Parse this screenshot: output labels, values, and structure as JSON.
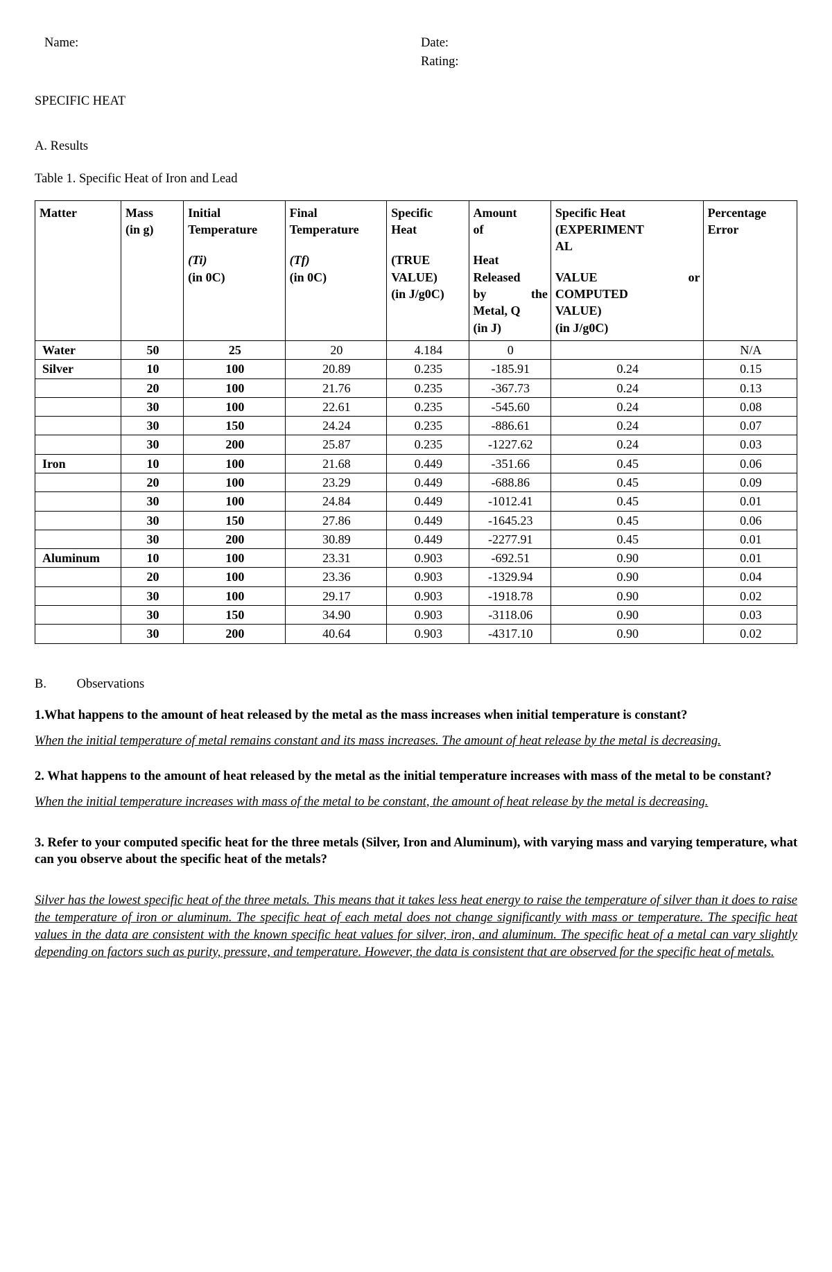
{
  "header": {
    "name_label": "Name:",
    "date_label": "Date:",
    "rating_label": "Rating:"
  },
  "title": "SPECIFIC HEAT",
  "sectionA_label": "A. Results",
  "table_caption": "Table 1. Specific Heat of Iron and Lead",
  "columns": {
    "matter": {
      "l1": "Matter"
    },
    "mass": {
      "l1": "Mass",
      "l2": "(in g)"
    },
    "ti": {
      "l1": "Initial",
      "l2": "Temperature",
      "s1": "(Ti)",
      "s2": "(in 0C)"
    },
    "tf": {
      "l1": "Final",
      "l2": "Temperature",
      "s1": "(Tf)",
      "s2": "(in 0C)"
    },
    "sh": {
      "l1": "Specific",
      "l2": "Heat",
      "s1": "(TRUE",
      "s2": "VALUE)",
      "s3": "(in J/g0C)"
    },
    "q": {
      "l1": "Amount",
      "l2": "of",
      "g1": "Heat",
      "g2": "Released",
      "g3a": "by",
      "g3b": "the",
      "g4": "Metal, Q",
      "g5": "(in J)"
    },
    "exp": {
      "l1": "Specific Heat",
      "l2": "(EXPERIMENT",
      "l3": "AL",
      "s1a": "VALUE",
      "s1b": "or",
      "s2": "COMPUTED",
      "s3": "VALUE)",
      "s4": "(in J/g0C)"
    },
    "err": {
      "l1": "Percentage",
      "l2": "Error"
    }
  },
  "rows": [
    {
      "matter": "Water",
      "mass": "50",
      "ti": "25",
      "tf": "20",
      "sh": "4.184",
      "q": "0",
      "exp": "",
      "err": "N/A"
    },
    {
      "matter": "Silver",
      "mass": "10",
      "ti": "100",
      "tf": "20.89",
      "sh": "0.235",
      "q": "-185.91",
      "exp": "0.24",
      "err": "0.15"
    },
    {
      "matter": "",
      "mass": "20",
      "ti": "100",
      "tf": "21.76",
      "sh": "0.235",
      "q": "-367.73",
      "exp": "0.24",
      "err": "0.13"
    },
    {
      "matter": "",
      "mass": "30",
      "ti": "100",
      "tf": "22.61",
      "sh": "0.235",
      "q": "-545.60",
      "exp": "0.24",
      "err": "0.08"
    },
    {
      "matter": "",
      "mass": "30",
      "ti": "150",
      "tf": "24.24",
      "sh": "0.235",
      "q": "-886.61",
      "exp": "0.24",
      "err": "0.07"
    },
    {
      "matter": "",
      "mass": "30",
      "ti": "200",
      "tf": "25.87",
      "sh": "0.235",
      "q": "-1227.62",
      "exp": "0.24",
      "err": "0.03"
    },
    {
      "matter": "Iron",
      "mass": "10",
      "ti": "100",
      "tf": "21.68",
      "sh": "0.449",
      "q": "-351.66",
      "exp": "0.45",
      "err": "0.06"
    },
    {
      "matter": "",
      "mass": "20",
      "ti": "100",
      "tf": "23.29",
      "sh": "0.449",
      "q": "-688.86",
      "exp": "0.45",
      "err": "0.09"
    },
    {
      "matter": "",
      "mass": "30",
      "ti": "100",
      "tf": "24.84",
      "sh": "0.449",
      "q": "-1012.41",
      "exp": "0.45",
      "err": "0.01"
    },
    {
      "matter": "",
      "mass": "30",
      "ti": "150",
      "tf": "27.86",
      "sh": "0.449",
      "q": "-1645.23",
      "exp": "0.45",
      "err": "0.06"
    },
    {
      "matter": "",
      "mass": "30",
      "ti": "200",
      "tf": "30.89",
      "sh": "0.449",
      "q": "-2277.91",
      "exp": "0.45",
      "err": "0.01"
    },
    {
      "matter": "Aluminum",
      "mass": "10",
      "ti": "100",
      "tf": "23.31",
      "sh": "0.903",
      "q": "-692.51",
      "exp": "0.90",
      "err": "0.01"
    },
    {
      "matter": "",
      "mass": "20",
      "ti": "100",
      "tf": "23.36",
      "sh": "0.903",
      "q": "-1329.94",
      "exp": "0.90",
      "err": "0.04"
    },
    {
      "matter": "",
      "mass": "30",
      "ti": "100",
      "tf": "29.17",
      "sh": "0.903",
      "q": "-1918.78",
      "exp": "0.90",
      "err": "0.02"
    },
    {
      "matter": "",
      "mass": "30",
      "ti": "150",
      "tf": "34.90",
      "sh": "0.903",
      "q": "-3118.06",
      "exp": "0.90",
      "err": "0.03"
    },
    {
      "matter": "",
      "mass": "30",
      "ti": "200",
      "tf": "40.64",
      "sh": "0.903",
      "q": "-4317.10",
      "exp": "0.90",
      "err": "0.02"
    }
  ],
  "sectionB": {
    "letter": "B.",
    "label": "Observations"
  },
  "q1": "1.What happens to the amount of heat released by the metal as the mass increases when initial temperature is constant?",
  "a1": "When the initial temperature of metal remains constant and its mass increases. The amount of heat release by the metal is decreasing.",
  "q2": "2. What happens to the amount of heat released by the metal as the initial temperature increases with mass of the metal to be constant?",
  "a2": "When the initial temperature increases with mass of the metal to be constant, the amount of heat release by the metal is decreasing.",
  "q3": "3. Refer to your computed specific heat for the three metals (Silver, Iron and Aluminum), with varying mass and varying temperature, what can you observe about the specific heat of the metals?",
  "a3": "Silver has the lowest specific heat of the three metals. This means that it takes less heat energy to raise the temperature of silver than it does to raise the temperature of iron or aluminum. The specific heat of each metal does not change significantly with mass or temperature. The specific heat values in the data are consistent with the known specific heat values for silver, iron, and aluminum. The specific heat of a metal can vary slightly depending on factors such as purity, pressure, and temperature. However, the data is consistent that are observed for the specific heat of metals."
}
